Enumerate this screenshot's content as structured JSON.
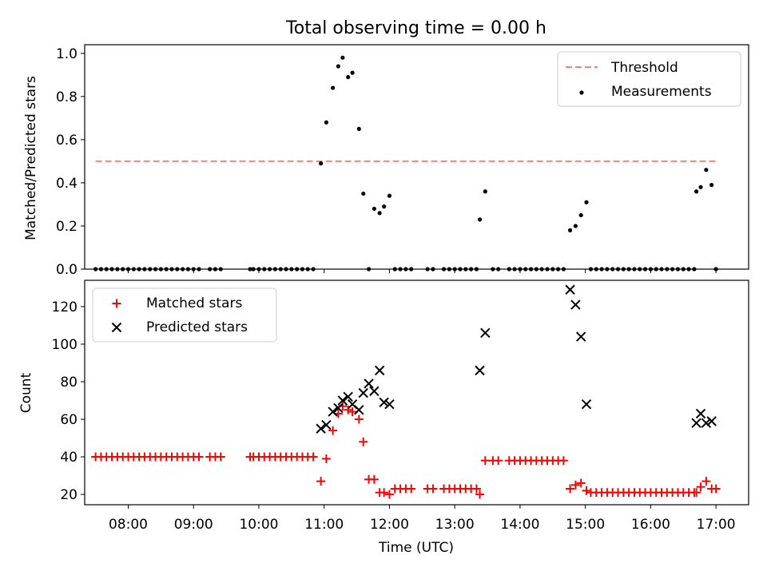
{
  "chart_data": [
    {
      "type": "scatter",
      "title": "Total observing time = 0.00 h",
      "xlabel": "",
      "ylabel": "Matched/Predicted stars",
      "xlim": [
        "07:20",
        "17:30"
      ],
      "ylim": [
        0,
        1.04
      ],
      "x_ticks": [
        "08:00",
        "09:00",
        "10:00",
        "11:00",
        "12:00",
        "13:00",
        "14:00",
        "15:00",
        "16:00",
        "17:00"
      ],
      "y_ticks": [
        "0.0",
        "0.2",
        "0.4",
        "0.6",
        "0.8",
        "1.0"
      ],
      "legend_position": "top-right",
      "threshold": {
        "name": "Threshold",
        "value": 0.5,
        "x_start": "07:30",
        "x_end": "17:00",
        "color": "#ff7f7f",
        "style": "dashed"
      },
      "series": [
        {
          "name": "Measurements",
          "color": "#000000",
          "marker": "dot",
          "points": [
            [
              "07:30",
              0
            ],
            [
              "07:35",
              0
            ],
            [
              "07:40",
              0
            ],
            [
              "07:45",
              0
            ],
            [
              "07:50",
              0
            ],
            [
              "07:55",
              0
            ],
            [
              "08:00",
              0
            ],
            [
              "08:05",
              0
            ],
            [
              "08:10",
              0
            ],
            [
              "08:15",
              0
            ],
            [
              "08:20",
              0
            ],
            [
              "08:25",
              0
            ],
            [
              "08:30",
              0
            ],
            [
              "08:35",
              0
            ],
            [
              "08:40",
              0
            ],
            [
              "08:45",
              0
            ],
            [
              "08:50",
              0
            ],
            [
              "08:55",
              0
            ],
            [
              "09:00",
              0
            ],
            [
              "09:05",
              0
            ],
            [
              "09:15",
              0
            ],
            [
              "09:20",
              0
            ],
            [
              "09:25",
              0
            ],
            [
              "09:52",
              0
            ],
            [
              "09:55",
              0
            ],
            [
              "10:00",
              0
            ],
            [
              "10:05",
              0
            ],
            [
              "10:10",
              0
            ],
            [
              "10:15",
              0
            ],
            [
              "10:20",
              0
            ],
            [
              "10:25",
              0
            ],
            [
              "10:30",
              0
            ],
            [
              "10:35",
              0
            ],
            [
              "10:40",
              0
            ],
            [
              "10:45",
              0
            ],
            [
              "10:50",
              0
            ],
            [
              "10:57",
              0.49
            ],
            [
              "11:02",
              0.68
            ],
            [
              "11:08",
              0.84
            ],
            [
              "11:13",
              0.94
            ],
            [
              "11:17",
              0.98
            ],
            [
              "11:22",
              0.89
            ],
            [
              "11:26",
              0.91
            ],
            [
              "11:32",
              0.65
            ],
            [
              "11:36",
              0.35
            ],
            [
              "11:41",
              0
            ],
            [
              "11:46",
              0.28
            ],
            [
              "11:51",
              0.26
            ],
            [
              "11:55",
              0.29
            ],
            [
              "12:00",
              0.34
            ],
            [
              "12:05",
              0
            ],
            [
              "12:10",
              0
            ],
            [
              "12:15",
              0
            ],
            [
              "12:20",
              0
            ],
            [
              "12:35",
              0
            ],
            [
              "12:40",
              0
            ],
            [
              "12:50",
              0
            ],
            [
              "12:55",
              0
            ],
            [
              "13:00",
              0
            ],
            [
              "13:05",
              0
            ],
            [
              "13:10",
              0
            ],
            [
              "13:15",
              0
            ],
            [
              "13:20",
              0
            ],
            [
              "13:23",
              0.23
            ],
            [
              "13:28",
              0.36
            ],
            [
              "13:35",
              0
            ],
            [
              "13:40",
              0
            ],
            [
              "13:50",
              0
            ],
            [
              "13:55",
              0
            ],
            [
              "14:00",
              0
            ],
            [
              "14:05",
              0
            ],
            [
              "14:10",
              0
            ],
            [
              "14:15",
              0
            ],
            [
              "14:20",
              0
            ],
            [
              "14:25",
              0
            ],
            [
              "14:30",
              0
            ],
            [
              "14:35",
              0
            ],
            [
              "14:40",
              0
            ],
            [
              "14:46",
              0.18
            ],
            [
              "14:51",
              0.2
            ],
            [
              "14:56",
              0.25
            ],
            [
              "15:01",
              0.31
            ],
            [
              "15:05",
              0
            ],
            [
              "15:10",
              0
            ],
            [
              "15:15",
              0
            ],
            [
              "15:20",
              0
            ],
            [
              "15:25",
              0
            ],
            [
              "15:30",
              0
            ],
            [
              "15:35",
              0
            ],
            [
              "15:40",
              0
            ],
            [
              "15:45",
              0
            ],
            [
              "15:50",
              0
            ],
            [
              "15:55",
              0
            ],
            [
              "16:00",
              0
            ],
            [
              "16:05",
              0
            ],
            [
              "16:10",
              0
            ],
            [
              "16:15",
              0
            ],
            [
              "16:20",
              0
            ],
            [
              "16:25",
              0
            ],
            [
              "16:30",
              0
            ],
            [
              "16:35",
              0
            ],
            [
              "16:40",
              0
            ],
            [
              "16:42",
              0.36
            ],
            [
              "16:46",
              0.38
            ],
            [
              "16:51",
              0.46
            ],
            [
              "16:56",
              0.39
            ],
            [
              "17:00",
              0
            ]
          ]
        }
      ]
    },
    {
      "type": "scatter",
      "title": "",
      "xlabel": "Time (UTC)",
      "ylabel": "Count",
      "xlim": [
        "07:20",
        "17:30"
      ],
      "ylim": [
        14.5,
        134
      ],
      "x_ticks": [
        "08:00",
        "09:00",
        "10:00",
        "11:00",
        "12:00",
        "13:00",
        "14:00",
        "15:00",
        "16:00",
        "17:00"
      ],
      "y_ticks": [
        "20",
        "40",
        "60",
        "80",
        "100",
        "120"
      ],
      "legend_position": "top-left",
      "series": [
        {
          "name": "Matched stars",
          "color": "#ff0000",
          "marker": "plus",
          "points": [
            [
              "07:30",
              40
            ],
            [
              "07:35",
              40
            ],
            [
              "07:40",
              40
            ],
            [
              "07:45",
              40
            ],
            [
              "07:50",
              40
            ],
            [
              "07:55",
              40
            ],
            [
              "08:00",
              40
            ],
            [
              "08:05",
              40
            ],
            [
              "08:10",
              40
            ],
            [
              "08:15",
              40
            ],
            [
              "08:20",
              40
            ],
            [
              "08:25",
              40
            ],
            [
              "08:30",
              40
            ],
            [
              "08:35",
              40
            ],
            [
              "08:40",
              40
            ],
            [
              "08:45",
              40
            ],
            [
              "08:50",
              40
            ],
            [
              "08:55",
              40
            ],
            [
              "09:00",
              40
            ],
            [
              "09:05",
              40
            ],
            [
              "09:15",
              40
            ],
            [
              "09:20",
              40
            ],
            [
              "09:25",
              40
            ],
            [
              "09:52",
              40
            ],
            [
              "09:55",
              40
            ],
            [
              "10:00",
              40
            ],
            [
              "10:05",
              40
            ],
            [
              "10:10",
              40
            ],
            [
              "10:15",
              40
            ],
            [
              "10:20",
              40
            ],
            [
              "10:25",
              40
            ],
            [
              "10:30",
              40
            ],
            [
              "10:35",
              40
            ],
            [
              "10:40",
              40
            ],
            [
              "10:45",
              40
            ],
            [
              "10:50",
              40
            ],
            [
              "10:57",
              27
            ],
            [
              "11:02",
              39
            ],
            [
              "11:08",
              54
            ],
            [
              "11:13",
              63
            ],
            [
              "11:17",
              67
            ],
            [
              "11:22",
              65
            ],
            [
              "11:26",
              64
            ],
            [
              "11:32",
              60
            ],
            [
              "11:36",
              48
            ],
            [
              "11:41",
              28
            ],
            [
              "11:46",
              28
            ],
            [
              "11:51",
              21
            ],
            [
              "11:55",
              21
            ],
            [
              "12:00",
              20
            ],
            [
              "12:05",
              23
            ],
            [
              "12:10",
              23
            ],
            [
              "12:15",
              23
            ],
            [
              "12:20",
              23
            ],
            [
              "12:35",
              23
            ],
            [
              "12:40",
              23
            ],
            [
              "12:50",
              23
            ],
            [
              "12:55",
              23
            ],
            [
              "13:00",
              23
            ],
            [
              "13:05",
              23
            ],
            [
              "13:10",
              23
            ],
            [
              "13:15",
              23
            ],
            [
              "13:20",
              23
            ],
            [
              "13:23",
              20
            ],
            [
              "13:28",
              38
            ],
            [
              "13:35",
              38
            ],
            [
              "13:40",
              38
            ],
            [
              "13:50",
              38
            ],
            [
              "13:55",
              38
            ],
            [
              "14:00",
              38
            ],
            [
              "14:05",
              38
            ],
            [
              "14:10",
              38
            ],
            [
              "14:15",
              38
            ],
            [
              "14:20",
              38
            ],
            [
              "14:25",
              38
            ],
            [
              "14:30",
              38
            ],
            [
              "14:35",
              38
            ],
            [
              "14:40",
              38
            ],
            [
              "14:46",
              23
            ],
            [
              "14:51",
              25
            ],
            [
              "14:56",
              26
            ],
            [
              "15:01",
              22
            ],
            [
              "15:05",
              21
            ],
            [
              "15:10",
              21
            ],
            [
              "15:15",
              21
            ],
            [
              "15:20",
              21
            ],
            [
              "15:25",
              21
            ],
            [
              "15:30",
              21
            ],
            [
              "15:35",
              21
            ],
            [
              "15:40",
              21
            ],
            [
              "15:45",
              21
            ],
            [
              "15:50",
              21
            ],
            [
              "15:55",
              21
            ],
            [
              "16:00",
              21
            ],
            [
              "16:05",
              21
            ],
            [
              "16:10",
              21
            ],
            [
              "16:15",
              21
            ],
            [
              "16:20",
              21
            ],
            [
              "16:25",
              21
            ],
            [
              "16:30",
              21
            ],
            [
              "16:35",
              21
            ],
            [
              "16:40",
              21
            ],
            [
              "16:42",
              21
            ],
            [
              "16:46",
              24
            ],
            [
              "16:51",
              27
            ],
            [
              "16:56",
              23
            ],
            [
              "17:00",
              23
            ]
          ]
        },
        {
          "name": "Predicted stars",
          "color": "#000000",
          "marker": "x",
          "points": [
            [
              "10:57",
              55
            ],
            [
              "11:02",
              57
            ],
            [
              "11:08",
              64
            ],
            [
              "11:13",
              66
            ],
            [
              "11:17",
              70
            ],
            [
              "11:22",
              72
            ],
            [
              "11:26",
              68
            ],
            [
              "11:32",
              65
            ],
            [
              "11:36",
              74
            ],
            [
              "11:41",
              79
            ],
            [
              "11:46",
              75
            ],
            [
              "11:51",
              86
            ],
            [
              "11:55",
              69
            ],
            [
              "12:00",
              68
            ],
            [
              "13:23",
              86
            ],
            [
              "13:28",
              106
            ],
            [
              "14:46",
              129
            ],
            [
              "14:51",
              121
            ],
            [
              "14:56",
              104
            ],
            [
              "15:01",
              68
            ],
            [
              "16:42",
              58
            ],
            [
              "16:46",
              63
            ],
            [
              "16:51",
              58
            ],
            [
              "16:56",
              59
            ]
          ]
        }
      ]
    }
  ]
}
